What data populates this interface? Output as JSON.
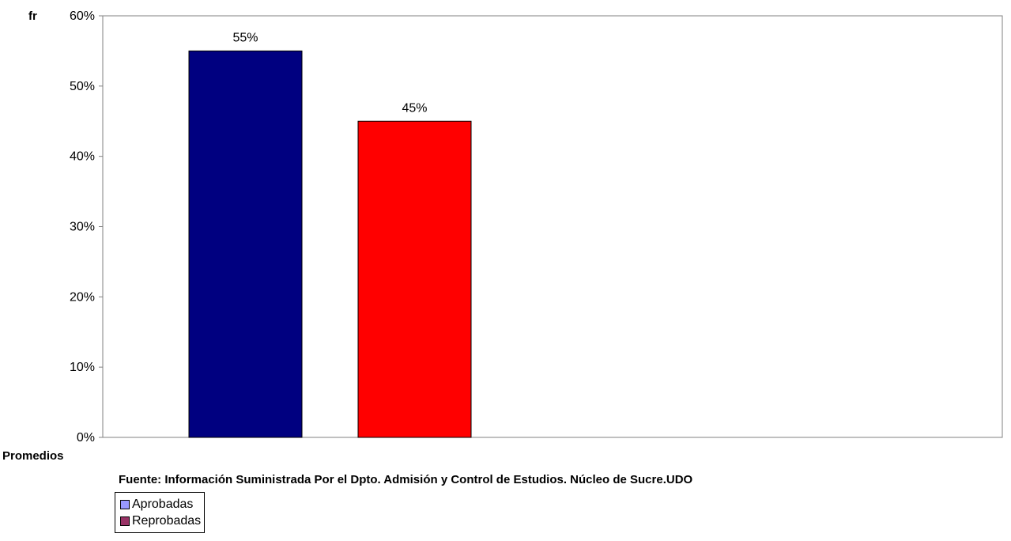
{
  "chart_data": {
    "type": "bar",
    "ylabel": "fr",
    "xlabel": "Promedios",
    "ylim": [
      0,
      60
    ],
    "yticks": [
      "0%",
      "10%",
      "20%",
      "30%",
      "40%",
      "50%",
      "60%"
    ],
    "grid": false,
    "legend_position": "bottom-left",
    "series": [
      {
        "name": "Aprobadas",
        "value": 55,
        "label": "55%",
        "color": "#000080",
        "legend_color": "#9999FF"
      },
      {
        "name": "Reprobadas",
        "value": 45,
        "label": "45%",
        "color": "#FF0000",
        "legend_color": "#993366"
      }
    ]
  },
  "source_note": "Fuente: Información Suministrada Por el Dpto. Admisión y Control de Estudios. Núcleo de Sucre.UDO"
}
